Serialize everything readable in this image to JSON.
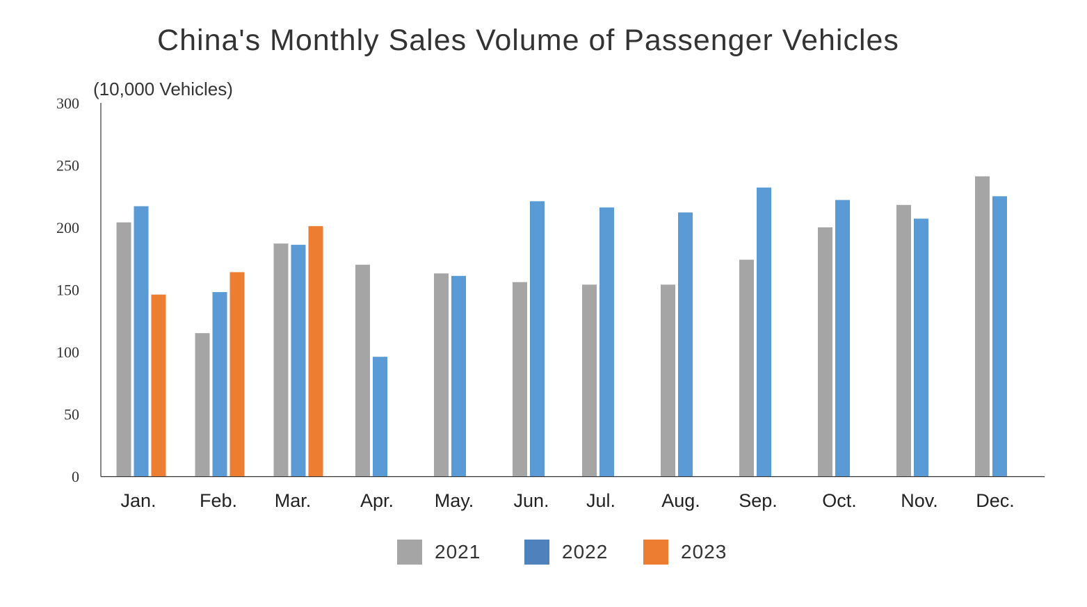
{
  "chart_data": {
    "type": "bar",
    "title": "China's Monthly Sales Volume of Passenger Vehicles",
    "ylabel": "(10,000 Vehicles)",
    "xlabel": "",
    "ylim": [
      0,
      300
    ],
    "yticks": [
      0,
      50,
      100,
      150,
      200,
      250,
      300
    ],
    "categories": [
      "Jan.",
      "Feb.",
      "Mar.",
      "Apr.",
      "May.",
      "Jun.",
      "Jul.",
      "Aug.",
      "Sep.",
      "Oct.",
      "Nov.",
      "Dec."
    ],
    "series": [
      {
        "name": "2021",
        "color": "#A5A5A5",
        "values": [
          204,
          115,
          187,
          170,
          163,
          156,
          154,
          154,
          174,
          200,
          218,
          241
        ]
      },
      {
        "name": "2022",
        "color": "#5B9BD5",
        "values": [
          217,
          148,
          186,
          96,
          161,
          221,
          216,
          212,
          232,
          222,
          207,
          225
        ]
      },
      {
        "name": "2023",
        "color": "#ED7D31",
        "values": [
          146,
          164,
          201,
          null,
          null,
          null,
          null,
          null,
          null,
          null,
          null,
          null
        ]
      }
    ],
    "legend": {
      "position": "bottom",
      "swatch_colors": [
        "#A5A5A5",
        "#4F81BD",
        "#ED7D31"
      ]
    }
  }
}
